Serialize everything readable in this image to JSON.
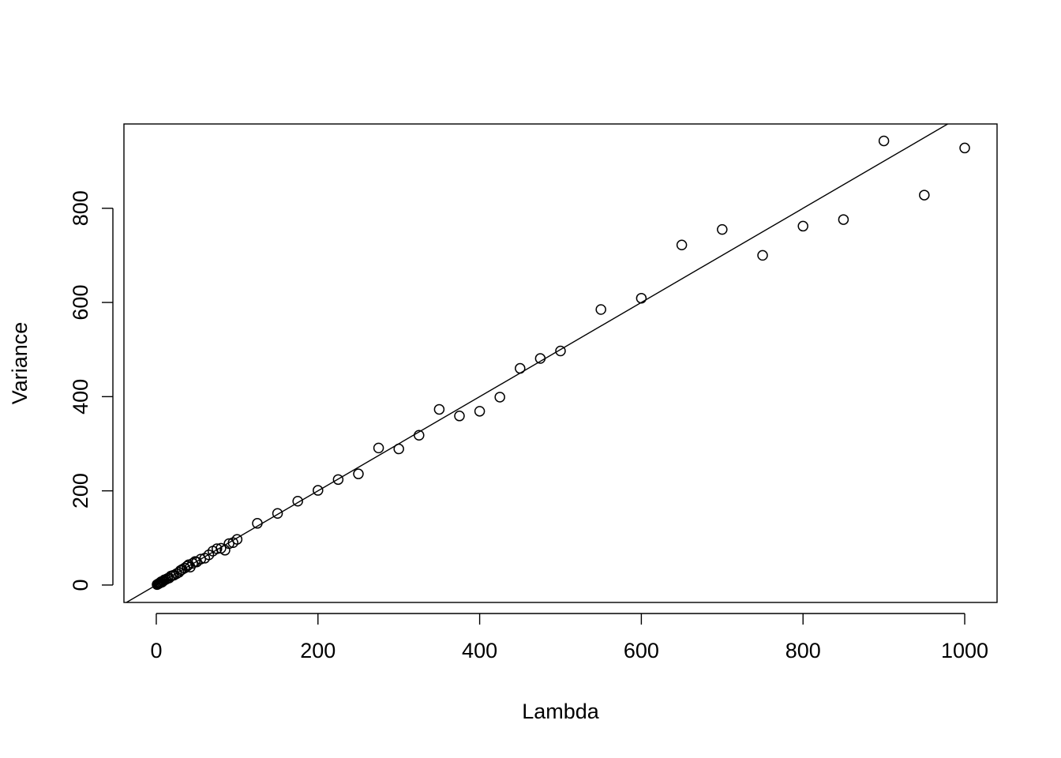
{
  "chart_data": {
    "type": "scatter",
    "xlabel": "Lambda",
    "ylabel": "Variance",
    "xlim": [
      -40,
      1040
    ],
    "ylim": [
      -37,
      979
    ],
    "x_ticks": [
      0,
      200,
      400,
      600,
      800,
      1000
    ],
    "y_ticks": [
      0,
      200,
      400,
      600,
      800
    ],
    "grid": false,
    "reference_line": {
      "intercept": 0,
      "slope": 1
    },
    "points": {
      "x": [
        1,
        2,
        3,
        4,
        5,
        6,
        7,
        8,
        9,
        10,
        12,
        14,
        16,
        18,
        20,
        22,
        25,
        28,
        30,
        32,
        35,
        38,
        40,
        42,
        45,
        48,
        50,
        55,
        60,
        65,
        70,
        75,
        80,
        85,
        90,
        95,
        100,
        125,
        150,
        175,
        200,
        225,
        250,
        275,
        300,
        325,
        350,
        375,
        400,
        425,
        450,
        475,
        500,
        550,
        600,
        650,
        700,
        750,
        800,
        850,
        900,
        950,
        1000
      ],
      "y": [
        1,
        2,
        3,
        4,
        5,
        7,
        6,
        8,
        9,
        11,
        12,
        14,
        15,
        19,
        20,
        21,
        24,
        27,
        31,
        33,
        36,
        40,
        43,
        38,
        46,
        50,
        49,
        55,
        57,
        64,
        72,
        77,
        78,
        74,
        88,
        90,
        97,
        131,
        152,
        178,
        201,
        224,
        236,
        291,
        289,
        318,
        373,
        359,
        369,
        399,
        460,
        481,
        497,
        585,
        609,
        722,
        755,
        700,
        762,
        776,
        943,
        828,
        928
      ]
    }
  }
}
